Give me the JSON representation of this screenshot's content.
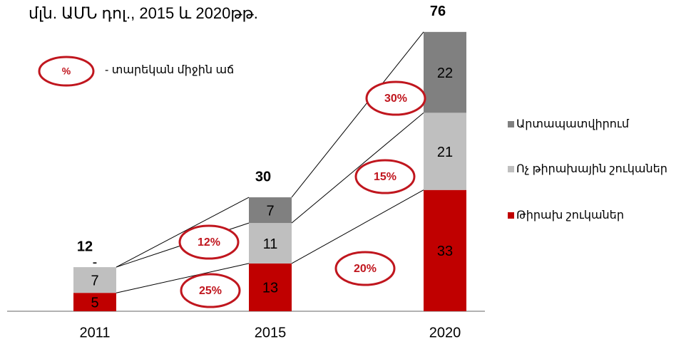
{
  "chart_data": {
    "type": "stacked_bar",
    "title": "մլն. ԱՄՆ դոլ., 2015 և 2020թթ.",
    "categories": [
      "2011",
      "2015",
      "2020"
    ],
    "series": [
      {
        "name": "Թիրախ շուկաներ",
        "color": "#c00000",
        "values": [
          5,
          13,
          33
        ]
      },
      {
        "name": "Ոչ թիրախային շուկաներ",
        "color": "#bfbfbf",
        "values": [
          7,
          11,
          21
        ]
      },
      {
        "name": "Արտապատվիրում",
        "color": "#808080",
        "values": [
          0,
          7,
          22
        ],
        "value_labels": [
          "-",
          "7",
          "22"
        ]
      }
    ],
    "totals": [
      12,
      30,
      76
    ],
    "legend_note": {
      "symbol": "%",
      "text": "- տարեկան միջին աճ"
    },
    "growth_labels": [
      "12%",
      "25%",
      "30%",
      "15%",
      "20%"
    ],
    "legend_position": "right"
  }
}
